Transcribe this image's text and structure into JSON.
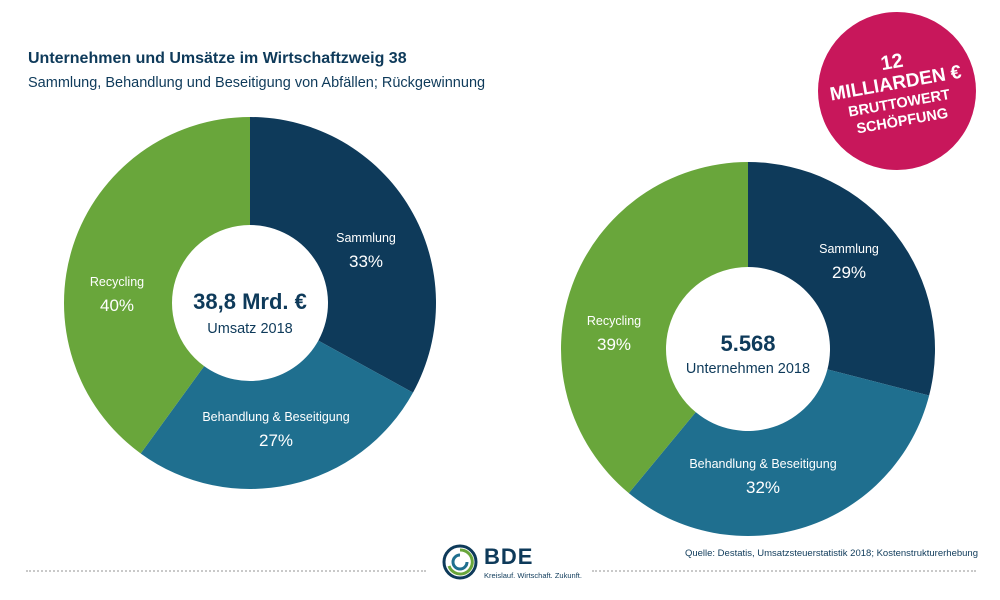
{
  "header": {
    "title": "Unternehmen und Umsätze im Wirtschaftzweig 38",
    "subtitle": "Sammlung, Behandlung und Beseitigung von Abfällen; Rückgewinnung"
  },
  "badge": {
    "number": "12",
    "line2": "MILLIARDEN €",
    "line3": "BRUTTOWERT",
    "line4": "SCHÖPFUNG"
  },
  "colors": {
    "sammlung": "#0e3a5a",
    "behandlung": "#1f6f8f",
    "recycling": "#69a63b",
    "badge": "#c8175b",
    "text": "#0e3a5a"
  },
  "chart_data": [
    {
      "type": "pie",
      "donut": true,
      "center_value": "38,8 Mrd. €",
      "center_label": "Umsatz 2018",
      "slices": [
        {
          "label": "Sammlung",
          "value": 33,
          "display": "33%"
        },
        {
          "label": "Behandlung & Beseitigung",
          "value": 27,
          "display": "27%"
        },
        {
          "label": "Recycling",
          "value": 40,
          "display": "40%"
        }
      ]
    },
    {
      "type": "pie",
      "donut": true,
      "center_value": "5.568",
      "center_label": "Unternehmen 2018",
      "slices": [
        {
          "label": "Sammlung",
          "value": 29,
          "display": "29%"
        },
        {
          "label": "Behandlung & Beseitigung",
          "value": 32,
          "display": "32%"
        },
        {
          "label": "Recycling",
          "value": 39,
          "display": "39%"
        }
      ]
    }
  ],
  "footer": {
    "source": "Quelle: Destatis, Umsatzsteuerstatistik 2018; Kostenstrukturerhebung",
    "logo_text": "BDE",
    "logo_tagline": "Kreislauf. Wirtschaft. Zukunft."
  }
}
